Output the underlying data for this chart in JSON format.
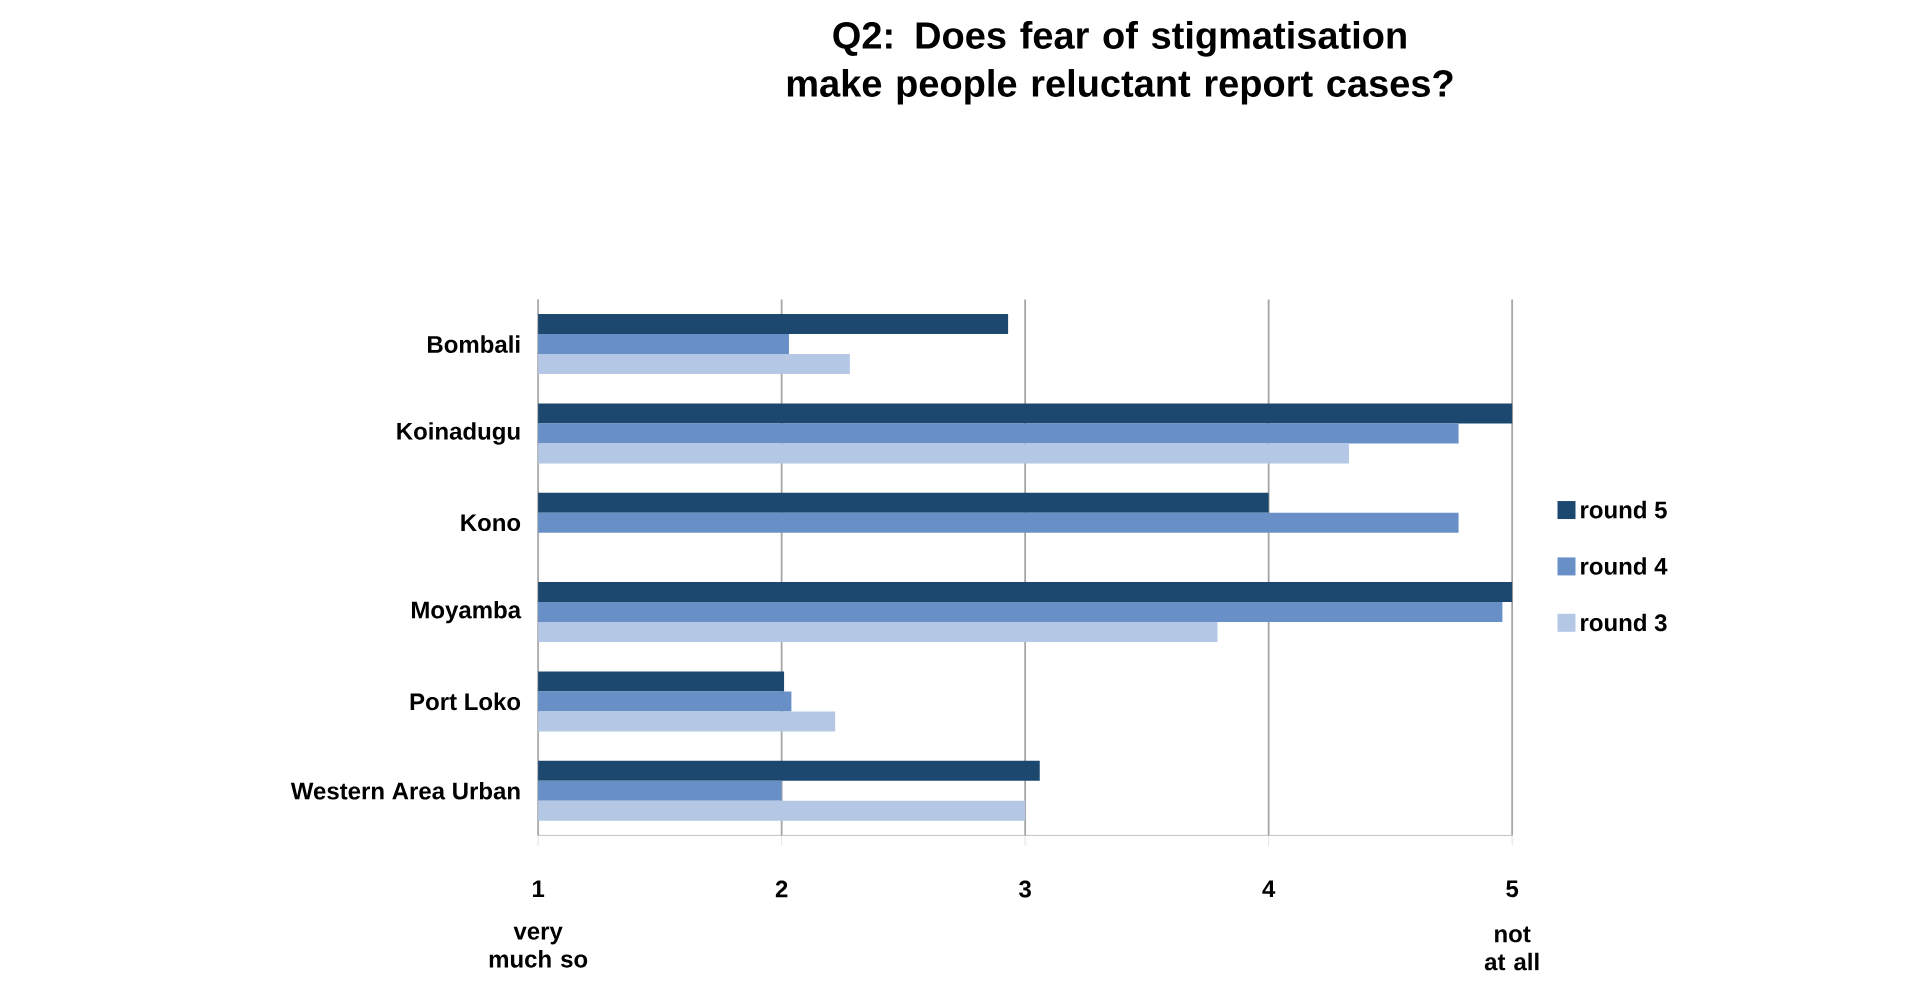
{
  "chart_data": {
    "type": "bar",
    "orientation": "horizontal",
    "title": "Q2:   Does fear of stigmatisation make people reluctant report cases?",
    "categories": [
      "Bombali",
      "Koinadugu",
      "Kono",
      "Moyamba",
      "Port Loko",
      "Western Area Urban"
    ],
    "series": [
      {
        "name": "round 5",
        "color": "#1c4870",
        "values": [
          2.93,
          5.0,
          4.0,
          5.0,
          2.01,
          3.06
        ]
      },
      {
        "name": "round 4",
        "color": "#6890c6",
        "values": [
          2.03,
          4.78,
          4.78,
          4.96,
          2.04,
          2.0
        ]
      },
      {
        "name": "round 3",
        "color": "#b4c8e6",
        "values": [
          2.28,
          4.33,
          null,
          3.79,
          2.22,
          3.0
        ]
      }
    ],
    "xlim": [
      1,
      5
    ],
    "xticks": [
      1,
      2,
      3,
      4,
      5
    ],
    "annotations": [
      "very much so",
      "not at all"
    ],
    "grid": "x",
    "legend": "right"
  }
}
